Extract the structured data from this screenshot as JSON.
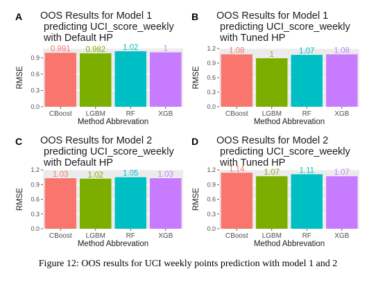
{
  "colors": {
    "CBoost": "#F8766D",
    "LGBM": "#7CAE00",
    "RF": "#00BFC4",
    "XGB": "#C77CFF",
    "panel_bg": "#EBEBEB",
    "grid_major": "#FFFFFF"
  },
  "caption": "Figure 12: OOS results for UCI weekly points prediction with model 1 and 2",
  "chart_data": [
    {
      "panel": "A",
      "type": "bar",
      "title": [
        "OOS Results for Model 1",
        "predicting UCI_score_weekly",
        "with Default HP"
      ],
      "xlabel": "Method Abbrevation",
      "ylabel": "RMSE",
      "categories": [
        "CBoost",
        "LGBM",
        "RF",
        "XGB"
      ],
      "values": [
        0.991,
        0.982,
        1.02,
        1
      ],
      "value_labels": [
        "0.991",
        "0.982",
        "1.02",
        "1"
      ],
      "ylim": [
        0,
        1.07
      ],
      "yticks": [
        0,
        0.3,
        0.6,
        0.9
      ],
      "ytick_labels": [
        "0.0",
        "0.3",
        "0.6",
        "0.9"
      ],
      "grid": true,
      "legend": "none"
    },
    {
      "panel": "B",
      "type": "bar",
      "title": [
        "OOS Results for Model 1",
        "predicting UCI_score_weekly",
        "with Tuned HP"
      ],
      "xlabel": "Method Abbrevation",
      "ylabel": "RMSE",
      "categories": [
        "CBoost",
        "LGBM",
        "RF",
        "XGB"
      ],
      "values": [
        1.08,
        1,
        1.07,
        1.08
      ],
      "value_labels": [
        "1.08",
        "1",
        "1.07",
        "1.08"
      ],
      "ylim": [
        0,
        1.2
      ],
      "yticks": [
        0,
        0.3,
        0.6,
        0.9,
        1.2
      ],
      "ytick_labels": [
        "0.0",
        "0.3",
        "0.6",
        "0.9",
        "1.2"
      ],
      "grid": true,
      "legend": "none"
    },
    {
      "panel": "C",
      "type": "bar",
      "title": [
        "OOS Results for Model 2",
        "predicting UCI_score_weekly",
        "with Default HP"
      ],
      "xlabel": "Method Abbrevation",
      "ylabel": "RMSE",
      "categories": [
        "CBoost",
        "LGBM",
        "RF",
        "XGB"
      ],
      "values": [
        1.03,
        1.02,
        1.05,
        1.03
      ],
      "value_labels": [
        "1.03",
        "1.02",
        "1.05",
        "1.03"
      ],
      "ylim": [
        0,
        1.2
      ],
      "yticks": [
        0,
        0.3,
        0.6,
        0.9,
        1.2
      ],
      "ytick_labels": [
        "0.0",
        "0.3",
        "0.6",
        "0.9",
        "1.2"
      ],
      "grid": true,
      "legend": "none"
    },
    {
      "panel": "D",
      "type": "bar",
      "title": [
        "OOS Results for Model 2",
        "predicting UCI_score_weekly",
        "with Tuned HP"
      ],
      "xlabel": "Method Abbrevation",
      "ylabel": "RMSE",
      "categories": [
        "CBoost",
        "LGBM",
        "RF",
        "XGB"
      ],
      "values": [
        1.14,
        1.07,
        1.11,
        1.07
      ],
      "value_labels": [
        "1.14",
        "1.07",
        "1.11",
        "1.07"
      ],
      "ylim": [
        0,
        1.2
      ],
      "yticks": [
        0,
        0.3,
        0.6,
        0.9,
        1.2
      ],
      "ytick_labels": [
        "0.0",
        "0.3",
        "0.6",
        "0.9",
        "1.2"
      ],
      "grid": true,
      "legend": "none"
    }
  ]
}
